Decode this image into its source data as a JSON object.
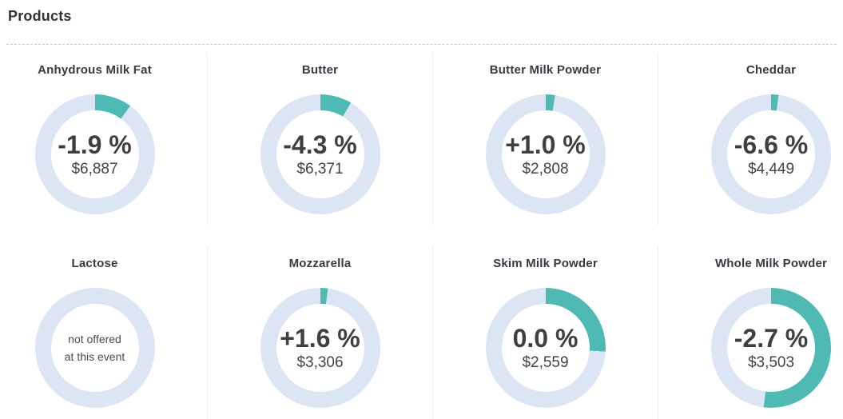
{
  "page": {
    "title": "Products"
  },
  "colors": {
    "accent_teal": "#4fbab3",
    "ring_blue": "#dbe5f4",
    "title_text": "#363b42",
    "value_text": "#3f3f3f",
    "divider": "#ededed",
    "dashed_rule": "#c9c9c9"
  },
  "products": [
    {
      "title": "Anhydrous Milk Fat",
      "change": "-1.9 %",
      "price": "$6,887",
      "arc_pct": 10
    },
    {
      "title": "Butter",
      "change": "-4.3 %",
      "price": "$6,371",
      "arc_pct": 8.5
    },
    {
      "title": "Butter Milk Powder",
      "change": "+1.0 %",
      "price": "$2,808",
      "arc_pct": 2.5
    },
    {
      "title": "Cheddar",
      "change": "-6.6 %",
      "price": "$4,449",
      "arc_pct": 2
    },
    {
      "title": "Lactose",
      "note_line1": "not offered",
      "note_line2": "at this event",
      "arc_pct": 0
    },
    {
      "title": "Mozzarella",
      "change": "+1.6 %",
      "price": "$3,306",
      "arc_pct": 2
    },
    {
      "title": "Skim Milk Powder",
      "change": "0.0 %",
      "price": "$2,559",
      "arc_pct": 26
    },
    {
      "title": "Whole Milk Powder",
      "change": "-2.7 %",
      "price": "$3,503",
      "arc_pct": 52
    }
  ],
  "chart_data": [
    {
      "type": "pie",
      "title": "Anhydrous Milk Fat",
      "labels": [
        "filled",
        "remainder"
      ],
      "values": [
        10,
        90
      ],
      "center_label": "-1.9 %",
      "center_sublabel": "$6,887",
      "colors": [
        "#4fbab3",
        "#dbe5f4"
      ],
      "start_angle": "top",
      "direction": "clockwise"
    },
    {
      "type": "pie",
      "title": "Butter",
      "labels": [
        "filled",
        "remainder"
      ],
      "values": [
        8.5,
        91.5
      ],
      "center_label": "-4.3 %",
      "center_sublabel": "$6,371",
      "colors": [
        "#4fbab3",
        "#dbe5f4"
      ],
      "start_angle": "top",
      "direction": "clockwise"
    },
    {
      "type": "pie",
      "title": "Butter Milk Powder",
      "labels": [
        "filled",
        "remainder"
      ],
      "values": [
        2.5,
        97.5
      ],
      "center_label": "+1.0 %",
      "center_sublabel": "$2,808",
      "colors": [
        "#4fbab3",
        "#dbe5f4"
      ],
      "start_angle": "top",
      "direction": "clockwise"
    },
    {
      "type": "pie",
      "title": "Cheddar",
      "labels": [
        "filled",
        "remainder"
      ],
      "values": [
        2,
        98
      ],
      "center_label": "-6.6 %",
      "center_sublabel": "$4,449",
      "colors": [
        "#4fbab3",
        "#dbe5f4"
      ],
      "start_angle": "top",
      "direction": "clockwise"
    },
    {
      "type": "pie",
      "title": "Lactose",
      "labels": [
        "filled",
        "remainder"
      ],
      "values": [
        0,
        100
      ],
      "center_label": "not offered at this event",
      "center_sublabel": "",
      "colors": [
        "#4fbab3",
        "#dbe5f4"
      ],
      "start_angle": "top",
      "direction": "clockwise"
    },
    {
      "type": "pie",
      "title": "Mozzarella",
      "labels": [
        "filled",
        "remainder"
      ],
      "values": [
        2,
        98
      ],
      "center_label": "+1.6 %",
      "center_sublabel": "$3,306",
      "colors": [
        "#4fbab3",
        "#dbe5f4"
      ],
      "start_angle": "top",
      "direction": "clockwise"
    },
    {
      "type": "pie",
      "title": "Skim Milk Powder",
      "labels": [
        "filled",
        "remainder"
      ],
      "values": [
        26,
        74
      ],
      "center_label": "0.0 %",
      "center_sublabel": "$2,559",
      "colors": [
        "#4fbab3",
        "#dbe5f4"
      ],
      "start_angle": "top",
      "direction": "clockwise"
    },
    {
      "type": "pie",
      "title": "Whole Milk Powder",
      "labels": [
        "filled",
        "remainder"
      ],
      "values": [
        52,
        48
      ],
      "center_label": "-2.7 %",
      "center_sublabel": "$3,503",
      "colors": [
        "#4fbab3",
        "#dbe5f4"
      ],
      "start_angle": "top",
      "direction": "clockwise"
    }
  ]
}
